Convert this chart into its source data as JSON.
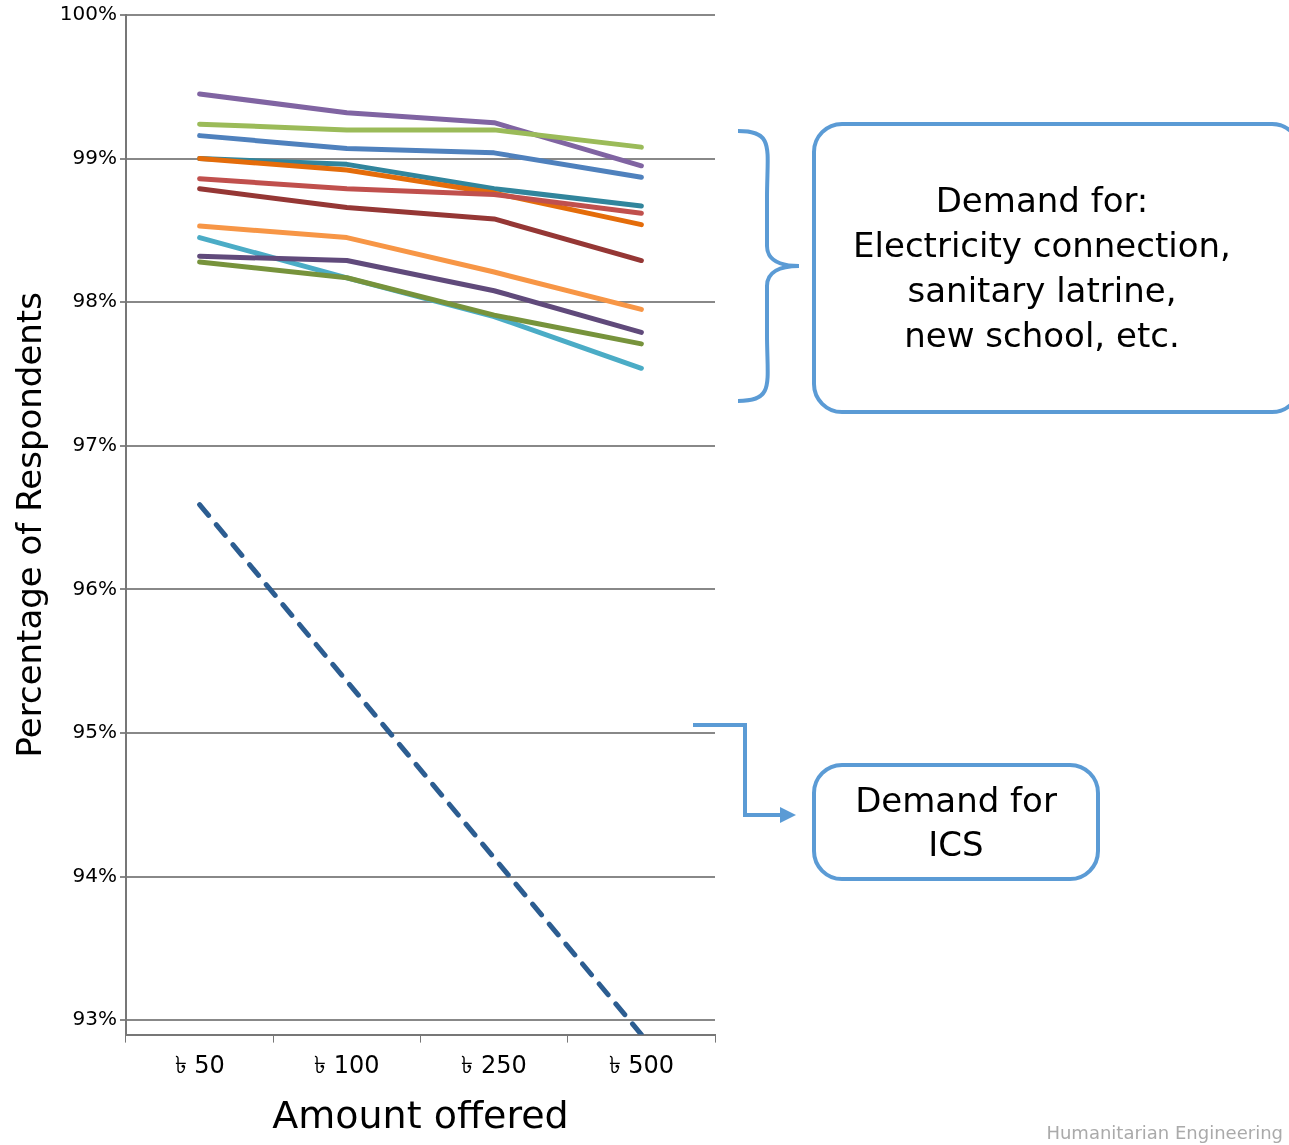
{
  "chart_data": {
    "type": "line",
    "xlabel": "Amount offered",
    "ylabel": "Percentage of Respondents",
    "categories": [
      "৳ 50",
      "৳ 100",
      "৳ 250",
      "৳ 500"
    ],
    "ylim": [
      92.9,
      100
    ],
    "yticks": [
      {
        "value": 93,
        "label": "93%"
      },
      {
        "value": 94,
        "label": "94%"
      },
      {
        "value": 95,
        "label": "95%"
      },
      {
        "value": 96,
        "label": "96%"
      },
      {
        "value": 97,
        "label": "97%"
      },
      {
        "value": 98,
        "label": "98%"
      },
      {
        "value": 99,
        "label": "99%"
      },
      {
        "value": 100,
        "label": "100%"
      }
    ],
    "grid": "y",
    "legend": false,
    "marker": "none",
    "series": [
      {
        "color": "#8064a2",
        "values": [
          99.45,
          99.32,
          99.25,
          98.95
        ]
      },
      {
        "color": "#9bbb59",
        "values": [
          99.24,
          99.2,
          99.2,
          99.08
        ]
      },
      {
        "color": "#4f81bd",
        "values": [
          99.16,
          99.07,
          99.04,
          98.87
        ]
      },
      {
        "color": "#31859c",
        "values": [
          99.0,
          98.96,
          98.79,
          98.67
        ]
      },
      {
        "color": "#e46c0a",
        "values": [
          99.0,
          98.92,
          98.76,
          98.54
        ]
      },
      {
        "color": "#c0504d",
        "values": [
          98.86,
          98.79,
          98.75,
          98.62
        ]
      },
      {
        "color": "#953735",
        "values": [
          98.79,
          98.66,
          98.58,
          98.29
        ]
      },
      {
        "color": "#f79646",
        "values": [
          98.53,
          98.45,
          98.21,
          97.95
        ]
      },
      {
        "color": "#4bacc6",
        "values": [
          98.45,
          98.17,
          97.9,
          97.54
        ]
      },
      {
        "color": "#604a7b",
        "values": [
          98.32,
          98.29,
          98.08,
          97.79
        ]
      },
      {
        "color": "#77933c",
        "values": [
          98.28,
          98.17,
          97.91,
          97.71
        ]
      },
      {
        "color": "#2c5d91",
        "line_style": "dashed",
        "values": [
          96.59,
          95.36,
          94.13,
          92.9
        ]
      }
    ],
    "annotations": [
      "Demand for:\nElectricity connection,\nsanitary latrine,\nnew school, etc.",
      "Demand for\nICS",
      "Humanitarian Engineering"
    ]
  }
}
